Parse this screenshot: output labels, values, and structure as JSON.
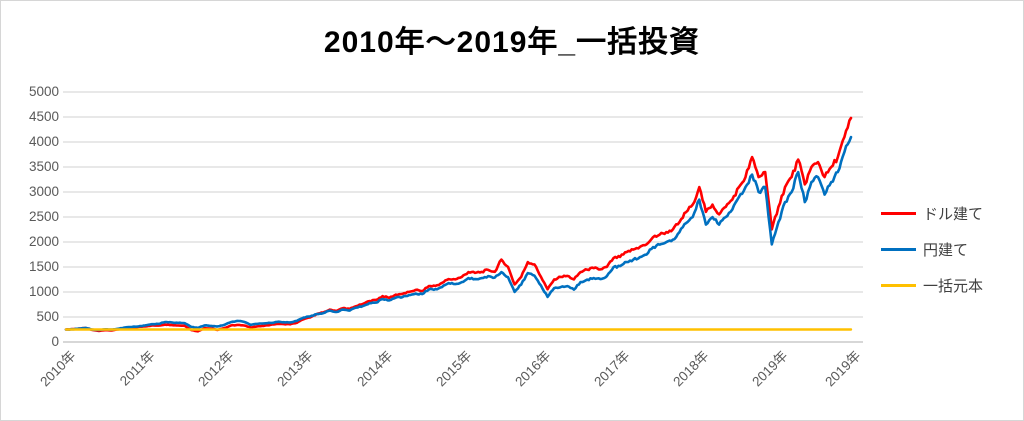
{
  "title": "2010年～2019年_一括投資",
  "colors": {
    "usd_line": "#FF0000",
    "jpy_line": "#0070C0",
    "principal_line": "#FFC000",
    "gridline": "#D9D9D9",
    "axis_line": "#BFBFBF",
    "tick_text": "#595959",
    "legend_text": "#404040",
    "title_text": "#000000"
  },
  "chart_data": {
    "type": "line",
    "title": "2010年～2019年_一括投資",
    "xlabel": "",
    "ylabel": "",
    "ylim": [
      0,
      5000
    ],
    "y_ticks": [
      0,
      500,
      1000,
      1500,
      2000,
      2500,
      3000,
      3500,
      4000,
      4500,
      5000
    ],
    "grid": "horizontal",
    "legend_position": "right",
    "x_unit": "monthly, 2010-01 through 2019-12",
    "x_tick_labels": [
      "2010年",
      "2011年",
      "2012年",
      "2013年",
      "2014年",
      "2015年",
      "2016年",
      "2017年",
      "2018年",
      "2019年",
      "2019年"
    ],
    "x_tick_indices": [
      0,
      12,
      24,
      36,
      48,
      60,
      72,
      84,
      96,
      108,
      119
    ],
    "series": [
      {
        "name": "ドル建て",
        "key": "usd",
        "color": "#FF0000",
        "values": [
          250,
          258,
          268,
          278,
          240,
          222,
          238,
          232,
          255,
          278,
          288,
          302,
          312,
          330,
          328,
          348,
          342,
          330,
          325,
          238,
          215,
          278,
          268,
          242,
          278,
          330,
          342,
          330,
          292,
          312,
          322,
          342,
          365,
          358,
          355,
          385,
          455,
          492,
          558,
          592,
          648,
          622,
          678,
          662,
          718,
          762,
          818,
          842,
          918,
          882,
          948,
          962,
          1002,
          1042,
          1022,
          1118,
          1122,
          1182,
          1258,
          1252,
          1302,
          1398,
          1382,
          1402,
          1442,
          1405,
          1648,
          1502,
          1152,
          1302,
          1598,
          1552,
          1302,
          1055,
          1252,
          1302,
          1322,
          1252,
          1398,
          1448,
          1478,
          1452,
          1502,
          1678,
          1702,
          1798,
          1848,
          1902,
          1952,
          2098,
          2148,
          2198,
          2252,
          2398,
          2598,
          2748,
          3098,
          2602,
          2748,
          2552,
          2702,
          2848,
          3098,
          3298,
          3698,
          3298,
          3398,
          2252,
          2702,
          3098,
          3298,
          3648,
          3152,
          3498,
          3598,
          3298,
          3498,
          3698,
          4098,
          4480
        ]
      },
      {
        "name": "円建て",
        "key": "jpy",
        "color": "#0070C0",
        "values": [
          250,
          254,
          270,
          282,
          248,
          242,
          254,
          248,
          266,
          292,
          302,
          312,
          332,
          356,
          362,
          398,
          392,
          382,
          376,
          302,
          282,
          332,
          322,
          312,
          342,
          398,
          422,
          402,
          342,
          362,
          372,
          382,
          402,
          396,
          392,
          422,
          488,
          512,
          558,
          578,
          628,
          602,
          648,
          628,
          688,
          718,
          778,
          788,
          858,
          832,
          888,
          898,
          938,
          968,
          958,
          1048,
          1058,
          1098,
          1178,
          1158,
          1198,
          1278,
          1258,
          1278,
          1318,
          1288,
          1398,
          1298,
          1002,
          1148,
          1378,
          1328,
          1128,
          902,
          1078,
          1098,
          1118,
          1048,
          1198,
          1248,
          1278,
          1258,
          1318,
          1498,
          1518,
          1598,
          1648,
          1698,
          1748,
          1898,
          1948,
          1998,
          2048,
          2198,
          2378,
          2498,
          2848,
          2348,
          2498,
          2348,
          2498,
          2648,
          2898,
          3098,
          3348,
          2998,
          3098,
          1952,
          2398,
          2798,
          2998,
          3398,
          2798,
          3198,
          3298,
          2948,
          3198,
          3398,
          3798,
          4098
        ]
      },
      {
        "name": "一括元本",
        "key": "principal",
        "color": "#FFC000",
        "constant": 250
      }
    ]
  }
}
